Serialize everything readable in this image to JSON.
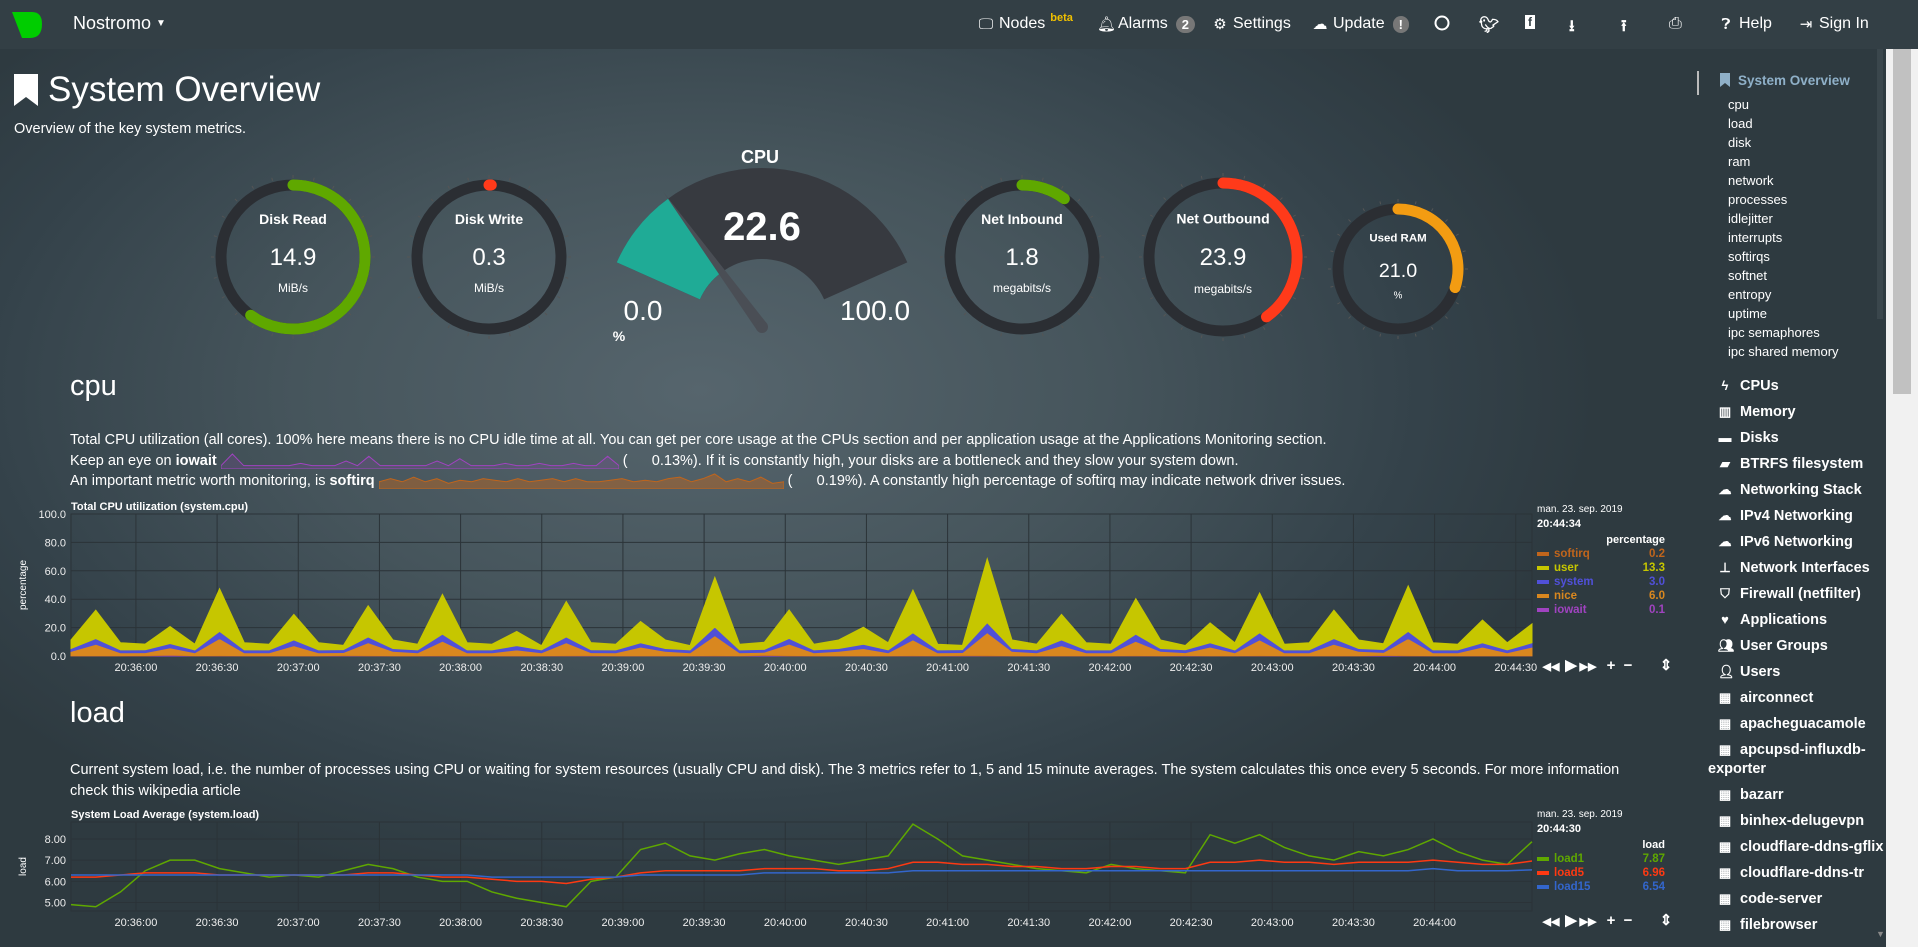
{
  "nav": {
    "brand": "Nostromo",
    "nodes": "Nodes",
    "beta": "beta",
    "alarms": "Alarms",
    "alarms_count": "2",
    "settings": "Settings",
    "update": "Update",
    "update_badge": "!",
    "help": "Help",
    "signin": "Sign In",
    "icons": [
      "github-icon",
      "twitter-icon",
      "facebook-icon",
      "download-icon",
      "upload-icon",
      "print-icon"
    ]
  },
  "page": {
    "title": "System Overview",
    "subtitle": "Overview of the key system metrics."
  },
  "gauges": [
    {
      "title": "Disk Read",
      "value": "14.9",
      "unit": "MiB/s",
      "fraction": 0.6,
      "color": "#5fa800"
    },
    {
      "title": "Disk Write",
      "value": "0.3",
      "unit": "MiB/s",
      "fraction": 0.005,
      "color": "#ff3a1a"
    },
    {
      "title": "Net Inbound",
      "value": "1.8",
      "unit": "megabits/s",
      "fraction": 0.1,
      "color": "#5fa800"
    },
    {
      "title": "Net Outbound",
      "value": "23.9",
      "unit": "megabits/s",
      "fraction": 0.4,
      "color": "#ff3a1a"
    },
    {
      "title": "Used RAM",
      "value": "21.0",
      "unit": "%",
      "fraction": 0.3,
      "color": "#f39c12"
    }
  ],
  "cpu_gauge": {
    "title": "CPU",
    "value": "22.6",
    "min": "0.0",
    "max": "100.0",
    "unit": "%",
    "percent": 22.6,
    "color": "#1fab96"
  },
  "cpu_section": {
    "heading": "cpu",
    "line1": "Total CPU utilization (all cores). 100% here means there is no CPU idle time at all. You can get per core usage at the CPUs section and per application usage at the Applications Monitoring section.",
    "line2_pre": "Keep an eye on ",
    "line2_key": "iowait",
    "line2_val": "(      0.13%). If it is constantly high, your disks are a bottleneck and they slow your system down.",
    "line3_pre": "An important metric worth monitoring, is ",
    "line3_key": "softirq",
    "line3_val": "(      0.19%). A constantly high percentage of softirq may indicate network driver issues.",
    "iowait_spark": [
      0.1,
      0.6,
      0.1,
      0.1,
      0.1,
      0.1,
      0.1,
      0.2,
      0.1,
      0.1,
      0.1,
      0.3,
      0.1,
      0.5,
      0.1,
      0.1,
      0.1,
      0.1,
      0.1,
      0.3,
      0.1,
      0.4,
      0.1,
      0.1,
      0.1,
      0.2,
      0.1,
      0.1,
      0.2,
      0.1,
      0.1,
      0.2,
      0.1,
      0.1,
      0.5,
      0.1
    ],
    "softirq_spark": [
      0.2,
      0.3,
      0.2,
      0.35,
      0.2,
      0.3,
      0.15,
      0.25,
      0.2,
      0.3,
      0.25,
      0.2,
      0.3,
      0.2,
      0.25,
      0.3,
      0.2,
      0.3,
      0.2,
      0.2,
      0.25,
      0.3,
      0.2,
      0.25,
      0.2,
      0.3,
      0.35,
      0.2,
      0.3,
      0.45,
      0.2,
      0.3,
      0.2,
      0.35,
      0.15,
      0.2
    ]
  },
  "load_section": {
    "heading": "load",
    "line1": "Current system load, i.e. the number of processes using CPU or waiting for system resources (usually CPU and disk). The 3 metrics refer to 1, 5 and 15 minute averages. The system calculates this once every 5 seconds. For more information check this",
    "line2": "wikipedia article"
  },
  "chart_data": [
    {
      "type": "area",
      "stacked": true,
      "title": "Total CPU utilization (system.cpu)",
      "ylabel": "percentage",
      "ylim": [
        0,
        100
      ],
      "yticks": [
        "0.0",
        "20.0",
        "40.0",
        "60.0",
        "80.0",
        "100.0"
      ],
      "xlim": [
        "20:35:36",
        "20:44:36"
      ],
      "xticks": [
        "20:36:00",
        "20:36:30",
        "20:37:00",
        "20:37:30",
        "20:38:00",
        "20:38:30",
        "20:39:00",
        "20:39:30",
        "20:40:00",
        "20:40:30",
        "20:41:00",
        "20:41:30",
        "20:42:00",
        "20:42:30",
        "20:43:00",
        "20:43:30",
        "20:44:00",
        "20:44:30"
      ],
      "date": "man. 23. sep. 2019",
      "time": "20:44:34",
      "units": "percentage",
      "grid": true,
      "legend": "right",
      "series": [
        {
          "name": "softirq",
          "color": "#c0651c",
          "last": "0.2",
          "values": [
            0.2,
            0.2,
            0.2,
            0.3,
            0.2,
            0.2,
            0.3,
            0.2,
            0.2,
            0.2,
            0.2,
            0.2,
            0.3,
            0.2,
            0.2,
            0.3,
            0.2,
            0.2,
            0.2,
            0.2,
            0.3,
            0.2,
            0.2,
            0.2,
            0.2,
            0.2,
            0.3,
            0.2,
            0.2,
            0.3,
            0.2,
            0.2,
            0.2,
            0.2,
            0.3,
            0.2,
            0.2,
            0.4,
            0.2,
            0.2,
            0.2,
            0.2,
            0.2,
            0.3,
            0.2,
            0.2,
            0.2,
            0.2,
            0.3,
            0.2,
            0.2,
            0.2,
            0.2,
            0.2,
            0.3,
            0.2,
            0.2,
            0.2,
            0.2,
            0.2
          ]
        },
        {
          "name": "user",
          "color": "#c6c600",
          "last": "13.3",
          "values": [
            6,
            20,
            5,
            4,
            12,
            4,
            30,
            5,
            4,
            18,
            5,
            3,
            22,
            6,
            4,
            28,
            5,
            4,
            10,
            3,
            25,
            5,
            4,
            15,
            6,
            3,
            35,
            4,
            5,
            20,
            4,
            6,
            12,
            5,
            30,
            4,
            3,
            45,
            6,
            4,
            18,
            5,
            4,
            25,
            6,
            3,
            14,
            5,
            28,
            4,
            5,
            20,
            6,
            4,
            32,
            5,
            4,
            16,
            5,
            13.3
          ]
        },
        {
          "name": "system",
          "color": "#5050d8",
          "last": "3.0",
          "values": [
            2,
            4,
            2,
            2,
            3,
            2,
            5,
            2,
            2,
            4,
            2,
            2,
            4,
            2,
            2,
            5,
            2,
            2,
            3,
            2,
            4,
            2,
            2,
            3,
            2,
            2,
            6,
            2,
            2,
            4,
            2,
            2,
            3,
            2,
            5,
            2,
            2,
            7,
            2,
            2,
            4,
            2,
            2,
            5,
            2,
            2,
            3,
            2,
            5,
            2,
            2,
            4,
            2,
            2,
            5,
            2,
            2,
            3,
            2,
            3
          ]
        },
        {
          "name": "nice",
          "color": "#d9871f",
          "last": "6.0",
          "values": [
            3,
            8,
            2,
            2,
            5,
            2,
            12,
            2,
            2,
            7,
            2,
            2,
            9,
            3,
            2,
            10,
            2,
            2,
            4,
            2,
            9,
            2,
            2,
            6,
            3,
            2,
            14,
            2,
            2,
            8,
            2,
            3,
            5,
            2,
            11,
            2,
            2,
            16,
            3,
            2,
            7,
            2,
            2,
            10,
            3,
            2,
            6,
            2,
            11,
            2,
            2,
            8,
            3,
            2,
            12,
            2,
            2,
            6,
            2,
            6
          ]
        },
        {
          "name": "iowait",
          "color": "#a043c0",
          "last": "0.1",
          "values": [
            0.1,
            0.1,
            0.1,
            0.1,
            0.6,
            0.1,
            0.1,
            0.1,
            0.1,
            0.1,
            0.1,
            0.3,
            0.1,
            0.1,
            0.1,
            0.1,
            0.1,
            0.1,
            0.1,
            0.1,
            0.1,
            0.2,
            0.1,
            0.1,
            0.1,
            0.1,
            0.1,
            0.1,
            0.5,
            0.1,
            0.1,
            0.1,
            0.1,
            0.1,
            0.1,
            0.1,
            0.3,
            0.1,
            0.1,
            0.1,
            0.1,
            0.1,
            0.1,
            0.1,
            0.1,
            0.2,
            0.1,
            0.1,
            0.1,
            0.1,
            0.1,
            0.1,
            0.1,
            0.4,
            0.1,
            0.1,
            0.1,
            0.1,
            0.1,
            0.1
          ]
        }
      ]
    },
    {
      "type": "line",
      "title": "System Load Average (system.load)",
      "ylabel": "load",
      "ylim": [
        4.6,
        8.8
      ],
      "yticks": [
        "5.00",
        "6.00",
        "7.00",
        "8.00"
      ],
      "xlim": [
        "20:35:36",
        "20:44:36"
      ],
      "xticks": [
        "20:36:00",
        "20:36:30",
        "20:37:00",
        "20:37:30",
        "20:38:00",
        "20:38:30",
        "20:39:00",
        "20:39:30",
        "20:40:00",
        "20:40:30",
        "20:41:00",
        "20:41:30",
        "20:42:00",
        "20:42:30",
        "20:43:00",
        "20:43:30",
        "20:44:00"
      ],
      "date": "man. 23. sep. 2019",
      "time": "20:44:30",
      "units": "load",
      "grid": true,
      "legend": "right",
      "series": [
        {
          "name": "load1",
          "color": "#5fa800",
          "last": "7.87",
          "values": [
            4.9,
            4.8,
            5.5,
            6.5,
            7.0,
            7.0,
            6.6,
            6.4,
            6.2,
            6.3,
            6.2,
            6.5,
            6.8,
            6.6,
            6.2,
            6.0,
            6.0,
            5.5,
            5.2,
            5.0,
            4.8,
            6.0,
            6.2,
            7.5,
            7.8,
            7.2,
            7.0,
            7.3,
            7.5,
            7.2,
            7.0,
            6.8,
            7.0,
            7.2,
            8.7,
            8.0,
            7.2,
            7.0,
            6.8,
            6.6,
            6.5,
            6.4,
            6.8,
            6.6,
            6.5,
            6.4,
            8.2,
            7.8,
            8.2,
            7.6,
            7.2,
            7.0,
            7.4,
            7.2,
            7.5,
            8.0,
            7.4,
            7.0,
            6.8,
            7.87
          ]
        },
        {
          "name": "load5",
          "color": "#fe3912",
          "last": "6.96",
          "values": [
            6.2,
            6.2,
            6.3,
            6.4,
            6.4,
            6.4,
            6.3,
            6.3,
            6.3,
            6.3,
            6.3,
            6.3,
            6.4,
            6.4,
            6.3,
            6.2,
            6.2,
            6.1,
            6.0,
            6.0,
            5.9,
            6.1,
            6.2,
            6.4,
            6.5,
            6.5,
            6.5,
            6.5,
            6.6,
            6.6,
            6.6,
            6.5,
            6.5,
            6.6,
            6.9,
            6.9,
            6.8,
            6.8,
            6.7,
            6.7,
            6.6,
            6.6,
            6.7,
            6.7,
            6.6,
            6.6,
            6.9,
            6.9,
            7.0,
            6.9,
            6.9,
            6.8,
            6.9,
            6.9,
            6.9,
            7.0,
            6.9,
            6.8,
            6.8,
            6.96
          ]
        },
        {
          "name": "load15",
          "color": "#3366cc",
          "last": "6.54",
          "values": [
            6.3,
            6.3,
            6.3,
            6.3,
            6.3,
            6.3,
            6.3,
            6.3,
            6.3,
            6.3,
            6.3,
            6.3,
            6.3,
            6.3,
            6.3,
            6.3,
            6.3,
            6.2,
            6.2,
            6.2,
            6.2,
            6.2,
            6.2,
            6.3,
            6.3,
            6.3,
            6.3,
            6.3,
            6.4,
            6.4,
            6.4,
            6.4,
            6.4,
            6.4,
            6.5,
            6.5,
            6.5,
            6.5,
            6.5,
            6.5,
            6.5,
            6.5,
            6.5,
            6.5,
            6.5,
            6.5,
            6.5,
            6.5,
            6.5,
            6.5,
            6.5,
            6.5,
            6.5,
            6.5,
            6.5,
            6.6,
            6.5,
            6.5,
            6.5,
            6.54
          ]
        }
      ]
    }
  ],
  "sidebar": {
    "active": "System Overview",
    "sub": [
      "cpu",
      "load",
      "disk",
      "ram",
      "network",
      "processes",
      "idlejitter",
      "interrupts",
      "softirqs",
      "softnet",
      "entropy",
      "uptime",
      "ipc semaphores",
      "ipc shared memory"
    ],
    "items": [
      {
        "label": "CPUs",
        "icon": "bolt-icon"
      },
      {
        "label": "Memory",
        "icon": "memory-icon"
      },
      {
        "label": "Disks",
        "icon": "hdd-icon"
      },
      {
        "label": "BTRFS filesystem",
        "icon": "folder-icon"
      },
      {
        "label": "Networking Stack",
        "icon": "cloud-icon"
      },
      {
        "label": "IPv4 Networking",
        "icon": "cloud-icon"
      },
      {
        "label": "IPv6 Networking",
        "icon": "cloud-icon"
      },
      {
        "label": "Network Interfaces",
        "icon": "sitemap-icon"
      },
      {
        "label": "Firewall (netfilter)",
        "icon": "shield-icon"
      },
      {
        "label": "Applications",
        "icon": "heartbeat-icon"
      },
      {
        "label": "User Groups",
        "icon": "users-icon"
      },
      {
        "label": "Users",
        "icon": "user-icon"
      },
      {
        "label": "airconnect",
        "icon": "grid-icon"
      },
      {
        "label": "apacheguacamole",
        "icon": "grid-icon"
      },
      {
        "label": "apcupsd-influxdb-",
        "label2": "exporter",
        "icon": "grid-icon"
      },
      {
        "label": "bazarr",
        "icon": "grid-icon"
      },
      {
        "label": "binhex-delugevpn",
        "icon": "grid-icon"
      },
      {
        "label": "cloudflare-ddns-gflix",
        "icon": "grid-icon"
      },
      {
        "label": "cloudflare-ddns-tr",
        "icon": "grid-icon"
      },
      {
        "label": "code-server",
        "icon": "grid-icon"
      },
      {
        "label": "filebrowser",
        "icon": "grid-icon"
      }
    ]
  },
  "controls": {
    "rewind": "◀◀",
    "play": "▶",
    "forward": "▶▶",
    "zoom_in": "+",
    "zoom_out": "−",
    "resize": "⇕"
  }
}
